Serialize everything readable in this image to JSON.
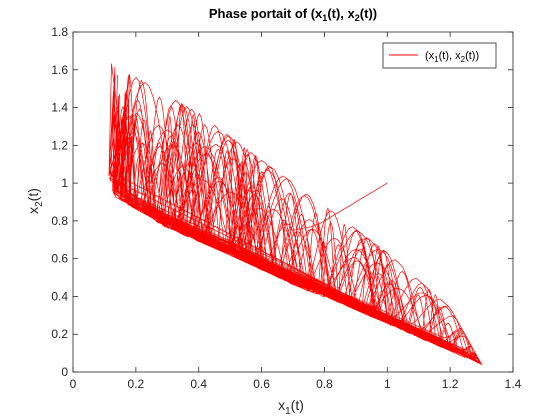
{
  "colors": {
    "series": "#ff0000",
    "axes": "#262626",
    "background": "#ffffff"
  },
  "chart_data": {
    "type": "line",
    "title": {
      "prefix": "Phase portait of (x",
      "sub1": "1",
      "mid": "(t), x",
      "sub2": "2",
      "suffix": "(t))"
    },
    "xlabel": {
      "main": "x",
      "sub": "1",
      "rest": "(t)"
    },
    "ylabel": {
      "main": "x",
      "sub": "2",
      "rest": "(t)"
    },
    "xlim": [
      0,
      1.4
    ],
    "ylim": [
      0,
      1.8
    ],
    "xticks": [
      0,
      0.2,
      0.4,
      0.6,
      0.8,
      1,
      1.2,
      1.4
    ],
    "xtick_labels": [
      "0",
      "0.2",
      "0.4",
      "0.6",
      "0.8",
      "1",
      "1.2",
      "1.4"
    ],
    "yticks": [
      0,
      0.2,
      0.4,
      0.6,
      0.8,
      1,
      1.2,
      1.4,
      1.6,
      1.8
    ],
    "ytick_labels": [
      "0",
      "0.2",
      "0.4",
      "0.6",
      "0.8",
      "1",
      "1.2",
      "1.4",
      "1.6",
      "1.8"
    ],
    "grid": false,
    "legend": {
      "placement": "top-right",
      "label": {
        "a": "(x",
        "s1": "1",
        "b": "(t), x",
        "s2": "2",
        "c": "(t))"
      }
    },
    "series": [
      {
        "start": [
          1.0,
          1.0
        ],
        "transient": [
          [
            1.0,
            1.0
          ],
          [
            0.96,
            0.96
          ],
          [
            0.92,
            0.92
          ],
          [
            0.88,
            0.88
          ],
          [
            0.85,
            0.85
          ],
          [
            0.82,
            0.82
          ],
          [
            0.79,
            0.79
          ],
          [
            0.76,
            0.77
          ],
          [
            0.73,
            0.76
          ],
          [
            0.7,
            0.75
          ]
        ],
        "envelope": {
          "upper": [
            [
              0.11,
              1.67
            ],
            [
              0.2,
              1.56
            ],
            [
              0.4,
              1.37
            ],
            [
              0.6,
              1.12
            ],
            [
              0.8,
              0.88
            ],
            [
              1.0,
              0.63
            ],
            [
              1.2,
              0.34
            ],
            [
              1.3,
              0.04
            ]
          ],
          "lower": [
            [
              0.11,
              1.06
            ],
            [
              0.13,
              0.93
            ],
            [
              0.3,
              0.76
            ],
            [
              0.5,
              0.62
            ],
            [
              0.7,
              0.46
            ],
            [
              0.9,
              0.33
            ],
            [
              1.1,
              0.18
            ],
            [
              1.3,
              0.04
            ]
          ]
        }
      }
    ]
  }
}
